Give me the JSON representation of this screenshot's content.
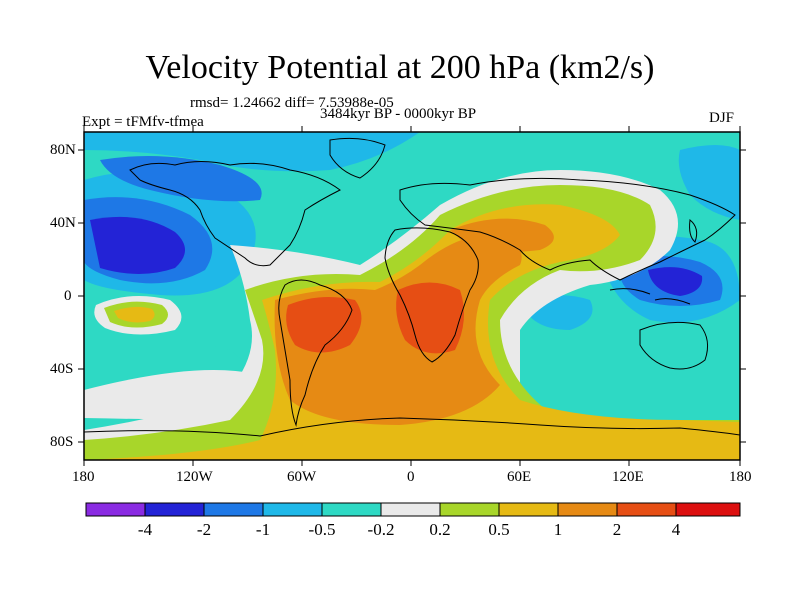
{
  "title": "Velocity Potential at 200 hPa (km2/s)",
  "stats": "rmsd= 1.24662 diff= 7.53988e-05",
  "left_label": "Expt = tFMfv-tfmea",
  "center_label": "3484kyr BP - 0000kyr BP",
  "right_label": "DJF",
  "map": {
    "projection": "cylindrical-equidistant",
    "lon_range": [
      -180,
      180
    ],
    "lat_range": [
      -90,
      90
    ],
    "lon_ticks": [
      "180",
      "120W",
      "60W",
      "0",
      "60E",
      "120E",
      "180"
    ],
    "lat_ticks": [
      "80N",
      "40N",
      "0",
      "40S",
      "80S"
    ]
  },
  "colorbar": {
    "levels": [
      "-4",
      "-2",
      "-1",
      "-0.5",
      "-0.2",
      "0.2",
      "0.5",
      "1",
      "2",
      "4"
    ],
    "colors": [
      "#8a2be2",
      "#2323d6",
      "#1e78e6",
      "#1fb8e8",
      "#2ed9c4",
      "#eaeaea",
      "#a8d62a",
      "#e6ba14",
      "#e68a14",
      "#e64e14",
      "#dc0f0f"
    ]
  }
}
